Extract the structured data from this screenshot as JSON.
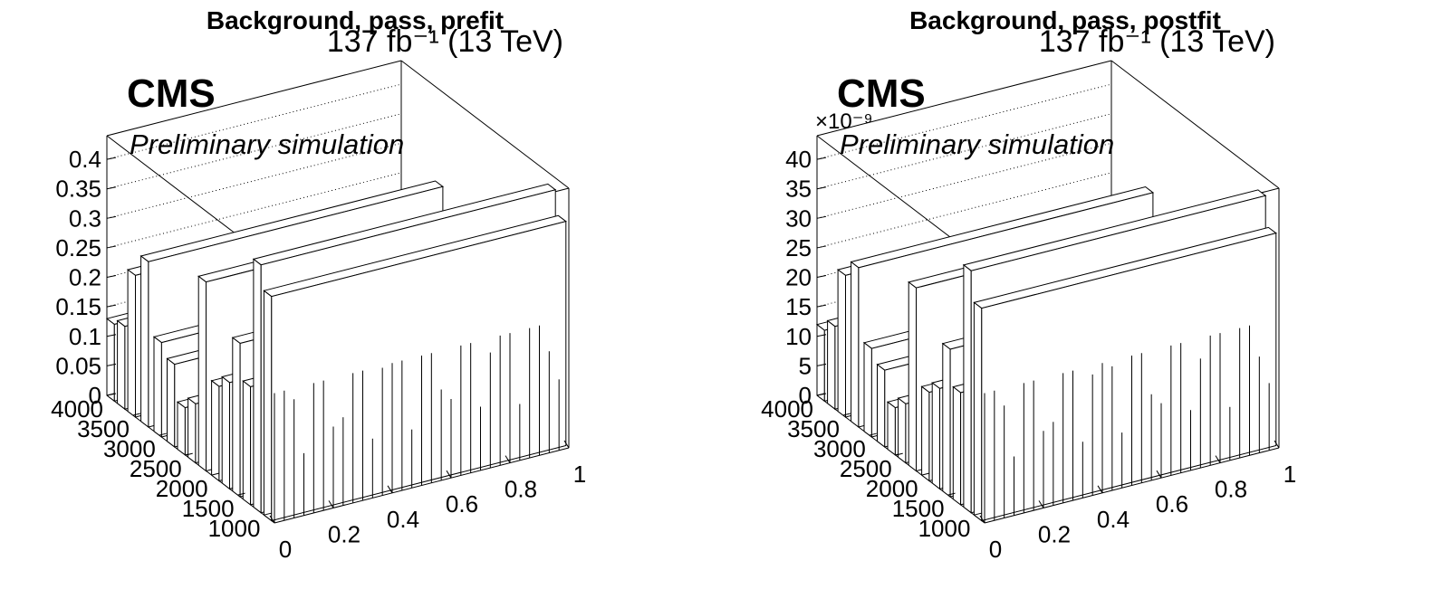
{
  "chart_data": [
    {
      "type": "bar",
      "title": "Background, pass, prefit",
      "lumi_label": "137 fb⁻¹ (13 TeV)",
      "experiment_label": "CMS",
      "status_label": "Preliminary simulation",
      "x_ticks": [
        "0",
        "0.2",
        "0.4",
        "0.6",
        "0.8",
        "1"
      ],
      "y_ticks": [
        "4000",
        "3500",
        "3000",
        "2500",
        "2000",
        "1500",
        "1000"
      ],
      "z_ticks": [
        "0",
        "0.05",
        "0.1",
        "0.15",
        "0.2",
        "0.25",
        "0.3",
        "0.35",
        "0.4"
      ],
      "z_exponent": "",
      "xlim": [
        0,
        1
      ],
      "ylim": [
        800,
        4000
      ],
      "zlim": [
        0,
        0.44
      ],
      "grid": true,
      "y_bins": [
        4000,
        3800,
        3600,
        3350,
        3100,
        2850,
        2650,
        2450,
        2250,
        2000,
        1800,
        1600,
        1400,
        1200,
        1000
      ],
      "bar_values": [
        0.13,
        0.14,
        0.24,
        0.28,
        0.16,
        0.14,
        0.08,
        0.1,
        0.32,
        0.16,
        0.18,
        0.26,
        0.2,
        0.42,
        0.38
      ]
    },
    {
      "type": "bar",
      "title": "Background, pass, postfit",
      "lumi_label": "137 fb⁻¹ (13 TeV)",
      "experiment_label": "CMS",
      "status_label": "Preliminary simulation",
      "x_ticks": [
        "0",
        "0.2",
        "0.4",
        "0.6",
        "0.8",
        "1"
      ],
      "y_ticks": [
        "4000",
        "3500",
        "3000",
        "2500",
        "2000",
        "1500",
        "1000"
      ],
      "z_ticks": [
        "0",
        "5",
        "10",
        "15",
        "20",
        "25",
        "30",
        "35",
        "40"
      ],
      "z_exponent": "×10⁻⁹",
      "xlim": [
        0,
        1
      ],
      "ylim": [
        800,
        4000
      ],
      "zlim": [
        0,
        44
      ],
      "grid": true,
      "y_bins": [
        4000,
        3800,
        3600,
        3350,
        3100,
        2850,
        2650,
        2450,
        2250,
        2000,
        1800,
        1600,
        1400,
        1200,
        1000
      ],
      "bar_values": [
        12,
        14,
        24,
        27,
        15,
        13,
        8,
        10,
        31,
        15,
        17,
        25,
        19,
        41,
        36
      ]
    }
  ]
}
